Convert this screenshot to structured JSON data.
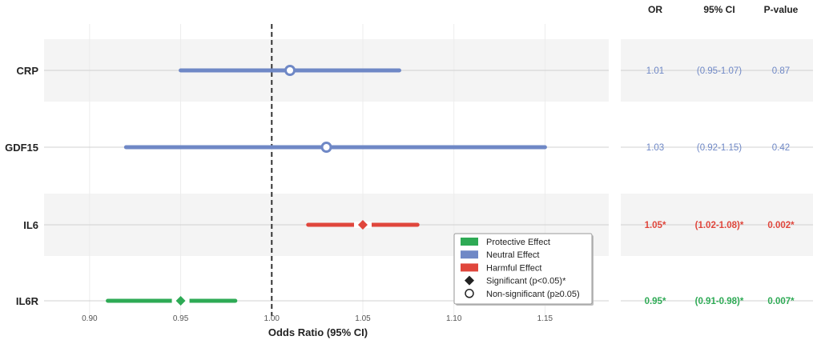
{
  "chart_data": {
    "type": "forest",
    "xlabel": "Odds Ratio (95% CI)",
    "xlim": [
      0.875,
      1.185
    ],
    "x_ticks": [
      {
        "value": 0.9,
        "label": "0.90"
      },
      {
        "value": 0.95,
        "label": "0.95"
      },
      {
        "value": 1.0,
        "label": "1.00"
      },
      {
        "value": 1.05,
        "label": "1.05"
      },
      {
        "value": 1.1,
        "label": "1.10"
      },
      {
        "value": 1.15,
        "label": "1.15"
      }
    ],
    "reference_line": 1.0,
    "rows": [
      {
        "label": "CRP",
        "or": 1.01,
        "ci_low": 0.95,
        "ci_high": 1.07,
        "effect": "neutral",
        "significant": false,
        "or_text": "1.01",
        "ci_text": "(0.95-1.07)",
        "p_text": "0.87"
      },
      {
        "label": "GDF15",
        "or": 1.03,
        "ci_low": 0.92,
        "ci_high": 1.15,
        "effect": "neutral",
        "significant": false,
        "or_text": "1.03",
        "ci_text": "(0.92-1.15)",
        "p_text": "0.42"
      },
      {
        "label": "IL6",
        "or": 1.05,
        "ci_low": 1.02,
        "ci_high": 1.08,
        "effect": "harmful",
        "significant": true,
        "or_text": "1.05*",
        "ci_text": "(1.02-1.08)*",
        "p_text": "0.002*"
      },
      {
        "label": "IL6R",
        "or": 0.95,
        "ci_low": 0.91,
        "ci_high": 0.98,
        "effect": "protective",
        "significant": true,
        "or_text": "0.95*",
        "ci_text": "(0.91-0.98)*",
        "p_text": "0.007*"
      }
    ],
    "table_headers": {
      "or": "OR",
      "ci": "95% CI",
      "p": "P-value"
    },
    "legend": {
      "placement": "bottom-right of plot",
      "entries": [
        {
          "kind": "bar",
          "effect": "protective",
          "label": "Protective Effect"
        },
        {
          "kind": "bar",
          "effect": "neutral",
          "label": "Neutral Effect"
        },
        {
          "kind": "bar",
          "effect": "harmful",
          "label": "Harmful Effect"
        },
        {
          "kind": "diamond",
          "label": "Significant (p<0.05)*"
        },
        {
          "kind": "circle",
          "label": "Non-significant (p≥0.05)"
        }
      ]
    },
    "colors": {
      "protective": "#2eaa55",
      "neutral": "#6f88c6",
      "harmful": "#e0463c",
      "band": "#f4f4f4",
      "row_line": "#d0d0d0",
      "reference": "#333333"
    }
  }
}
